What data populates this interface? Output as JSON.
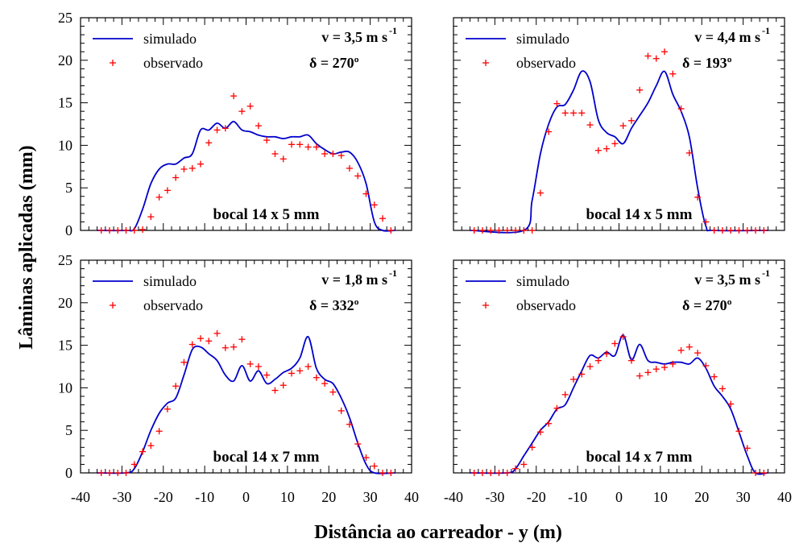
{
  "figure": {
    "ylabel": "Lâminas aplicadas (mm)",
    "xlabel": "Distância ao carreador - y (m)"
  },
  "chart_data": [
    {
      "type": "line",
      "panel": "top-left",
      "legend": {
        "simulated": "simulado",
        "observed": "observado",
        "placement": "top-left"
      },
      "velocity_label": "v = 3,5 m s",
      "velocity_exp": "-1",
      "direction_label": "δ = 270º",
      "nozzle_label": "bocal 14 x 5 mm",
      "xlim": [
        -40,
        40
      ],
      "ylim": [
        0,
        25
      ],
      "xticks": [
        -40,
        -30,
        -20,
        -10,
        0,
        10,
        20,
        30,
        40
      ],
      "yticks": [
        0,
        5,
        10,
        15,
        20,
        25
      ],
      "show_x_tick_labels": false,
      "show_y_tick_labels": true,
      "series": [
        {
          "kind": "line",
          "color": "#0000cc",
          "x": [
            -36,
            -29,
            -27,
            -25,
            -23,
            -21,
            -19,
            -17,
            -15,
            -13,
            -11,
            -9,
            -7,
            -5,
            -3,
            -1,
            1,
            3,
            5,
            7,
            9,
            11,
            13,
            15,
            17,
            19,
            21,
            23,
            25,
            27,
            29,
            31,
            33,
            36
          ],
          "y": [
            0,
            0,
            0.2,
            2.5,
            5.5,
            7.2,
            7.8,
            7.8,
            8.5,
            9,
            11.8,
            11.8,
            12.6,
            12,
            12.8,
            11.8,
            11.6,
            11.2,
            11,
            11,
            10.8,
            11,
            11,
            11.2,
            10.2,
            9.5,
            9,
            9.2,
            9.2,
            8,
            5.5,
            1,
            0,
            0
          ]
        },
        {
          "kind": "scatter",
          "marker": "+",
          "color": "#ff0000",
          "x": [
            -35,
            -33,
            -31,
            -29,
            -27,
            -25,
            -23,
            -21,
            -19,
            -17,
            -15,
            -13,
            -11,
            -9,
            -7,
            -5,
            -3,
            -1,
            1,
            3,
            5,
            7,
            9,
            11,
            13,
            15,
            17,
            19,
            21,
            23,
            25,
            27,
            29,
            31,
            33,
            35
          ],
          "y": [
            0,
            0,
            0,
            0,
            0,
            0.1,
            1.6,
            3.9,
            4.7,
            6.2,
            7.2,
            7.3,
            7.8,
            10.3,
            11.8,
            12,
            15.8,
            14,
            14.6,
            12.3,
            10.6,
            9,
            8.4,
            10.1,
            10.1,
            9.8,
            9.8,
            9,
            9,
            8.8,
            7.3,
            6.4,
            4.3,
            3,
            1.4,
            0
          ]
        }
      ]
    },
    {
      "type": "line",
      "panel": "top-right",
      "legend": {
        "simulated": "simulado",
        "observed": "observado",
        "placement": "top-left"
      },
      "velocity_label": "v = 4,4 m s",
      "velocity_exp": "-1",
      "direction_label": "δ = 193º",
      "nozzle_label": "bocal 14 x 5 mm",
      "xlim": [
        -40,
        40
      ],
      "ylim": [
        0,
        25
      ],
      "xticks": [
        -40,
        -30,
        -20,
        -10,
        0,
        10,
        20,
        30,
        40
      ],
      "yticks": [
        0,
        5,
        10,
        15,
        20,
        25
      ],
      "show_x_tick_labels": false,
      "show_y_tick_labels": false,
      "series": [
        {
          "kind": "line",
          "color": "#0000cc",
          "x": [
            -36,
            -23,
            -21,
            -19,
            -17,
            -15,
            -13,
            -11,
            -9,
            -7,
            -5,
            -3,
            -1,
            1,
            3,
            5,
            7,
            9,
            11,
            13,
            15,
            17,
            19,
            21,
            23,
            36
          ],
          "y": [
            0,
            0,
            3.5,
            9,
            12.5,
            14.5,
            14.8,
            16.5,
            18.7,
            17.5,
            13,
            11.5,
            11,
            10.2,
            12,
            13.5,
            15,
            17,
            18.7,
            16,
            14,
            11,
            5,
            0.5,
            0,
            0
          ]
        },
        {
          "kind": "scatter",
          "marker": "+",
          "color": "#ff0000",
          "x": [
            -35,
            -33,
            -31,
            -29,
            -27,
            -25,
            -23,
            -21,
            -19,
            -17,
            -15,
            -13,
            -11,
            -9,
            -7,
            -5,
            -3,
            -1,
            1,
            3,
            5,
            7,
            9,
            11,
            13,
            15,
            17,
            19,
            21,
            23,
            25,
            27,
            29,
            31,
            33,
            35
          ],
          "y": [
            0,
            0,
            0,
            0,
            0,
            0,
            0,
            0,
            4.4,
            11.6,
            14.9,
            13.8,
            13.8,
            13.8,
            12.4,
            9.4,
            9.6,
            10.2,
            12.3,
            12.9,
            16.5,
            20.5,
            20.2,
            21,
            18.4,
            14.3,
            9.1,
            3.9,
            1,
            0,
            0,
            0,
            0,
            0,
            0,
            0
          ]
        }
      ]
    },
    {
      "type": "line",
      "panel": "bottom-left",
      "legend": {
        "simulated": "simulado",
        "observed": "observado",
        "placement": "top-left"
      },
      "velocity_label": "v = 1,8 m s",
      "velocity_exp": "-1",
      "direction_label": "δ = 332º",
      "nozzle_label": "bocal 14 x 7 mm",
      "xlim": [
        -40,
        40
      ],
      "ylim": [
        0,
        25
      ],
      "xticks": [
        -40,
        -30,
        -20,
        -10,
        0,
        10,
        20,
        30,
        40
      ],
      "yticks": [
        0,
        5,
        10,
        15,
        20,
        25
      ],
      "show_x_tick_labels": true,
      "show_y_tick_labels": true,
      "series": [
        {
          "kind": "line",
          "color": "#0000cc",
          "x": [
            -36,
            -29,
            -27,
            -25,
            -23,
            -21,
            -19,
            -17,
            -15,
            -13,
            -11,
            -9,
            -7,
            -5,
            -3,
            -1,
            1,
            3,
            5,
            7,
            9,
            11,
            13,
            15,
            17,
            19,
            21,
            23,
            25,
            27,
            29,
            31,
            36
          ],
          "y": [
            0,
            0,
            0.5,
            2.5,
            5,
            7,
            8.2,
            8.8,
            11.5,
            14.5,
            14.8,
            14,
            13.2,
            11.5,
            10.8,
            12.6,
            10.8,
            12,
            10.5,
            11,
            11.8,
            12.3,
            13.5,
            16,
            12.3,
            11,
            10.5,
            8.8,
            6.5,
            3.5,
            1,
            0,
            0
          ]
        },
        {
          "kind": "scatter",
          "marker": "+",
          "color": "#ff0000",
          "x": [
            -35,
            -33,
            -31,
            -29,
            -27,
            -25,
            -23,
            -21,
            -19,
            -17,
            -15,
            -13,
            -11,
            -9,
            -7,
            -5,
            -3,
            -1,
            1,
            3,
            5,
            7,
            9,
            11,
            13,
            15,
            17,
            19,
            21,
            23,
            25,
            27,
            29,
            31,
            33,
            35
          ],
          "y": [
            0,
            0,
            0,
            0,
            1,
            2.5,
            3.2,
            4.9,
            7.5,
            10.2,
            13,
            15.1,
            15.8,
            15.5,
            16.4,
            14.7,
            14.8,
            15.7,
            12.8,
            12.5,
            11.5,
            9.7,
            10.3,
            11.7,
            12,
            12.5,
            11.2,
            10.5,
            9.5,
            7.3,
            5.7,
            3.4,
            1.8,
            0.8,
            0,
            0
          ]
        }
      ]
    },
    {
      "type": "line",
      "panel": "bottom-right",
      "legend": {
        "simulated": "simulado",
        "observed": "observado",
        "placement": "top-left"
      },
      "velocity_label": "v = 3,5 m s",
      "velocity_exp": "-1",
      "direction_label": "δ = 270º",
      "nozzle_label": "bocal 14 x 7 mm",
      "xlim": [
        -40,
        40
      ],
      "ylim": [
        0,
        25
      ],
      "xticks": [
        -40,
        -30,
        -20,
        -10,
        0,
        10,
        20,
        30,
        40
      ],
      "yticks": [
        0,
        5,
        10,
        15,
        20,
        25
      ],
      "show_x_tick_labels": true,
      "show_y_tick_labels": false,
      "series": [
        {
          "kind": "line",
          "color": "#0000cc",
          "x": [
            -36,
            -27,
            -25,
            -23,
            -21,
            -19,
            -17,
            -15,
            -13,
            -11,
            -9,
            -7,
            -5,
            -3,
            -1,
            1,
            3,
            5,
            7,
            9,
            11,
            13,
            15,
            17,
            19,
            21,
            23,
            25,
            27,
            29,
            31,
            33,
            36
          ],
          "y": [
            0,
            0,
            0.5,
            2,
            3.5,
            5,
            6,
            7.5,
            8,
            10,
            12,
            13.8,
            13.5,
            14.2,
            13.8,
            16.2,
            13.3,
            15.1,
            13.2,
            13,
            12.8,
            13,
            13,
            12.8,
            13.5,
            12.3,
            10.2,
            9,
            7.5,
            4.8,
            2,
            0,
            0
          ]
        },
        {
          "kind": "scatter",
          "marker": "+",
          "color": "#ff0000",
          "x": [
            -35,
            -33,
            -31,
            -29,
            -27,
            -25,
            -23,
            -21,
            -19,
            -17,
            -15,
            -13,
            -11,
            -9,
            -7,
            -5,
            -3,
            -1,
            1,
            3,
            5,
            7,
            9,
            11,
            13,
            15,
            17,
            19,
            21,
            23,
            25,
            27,
            29,
            31,
            33,
            35
          ],
          "y": [
            0,
            0,
            0,
            0,
            0,
            0.5,
            1,
            3,
            4.8,
            5.8,
            7.6,
            9.2,
            11,
            11.6,
            12.5,
            13.2,
            14,
            15.2,
            16,
            13.2,
            11.4,
            11.8,
            12.2,
            12.4,
            12.8,
            14.4,
            14.8,
            14.1,
            12.6,
            11.3,
            9.9,
            8.1,
            4.9,
            2.9,
            0,
            0
          ]
        }
      ]
    }
  ]
}
